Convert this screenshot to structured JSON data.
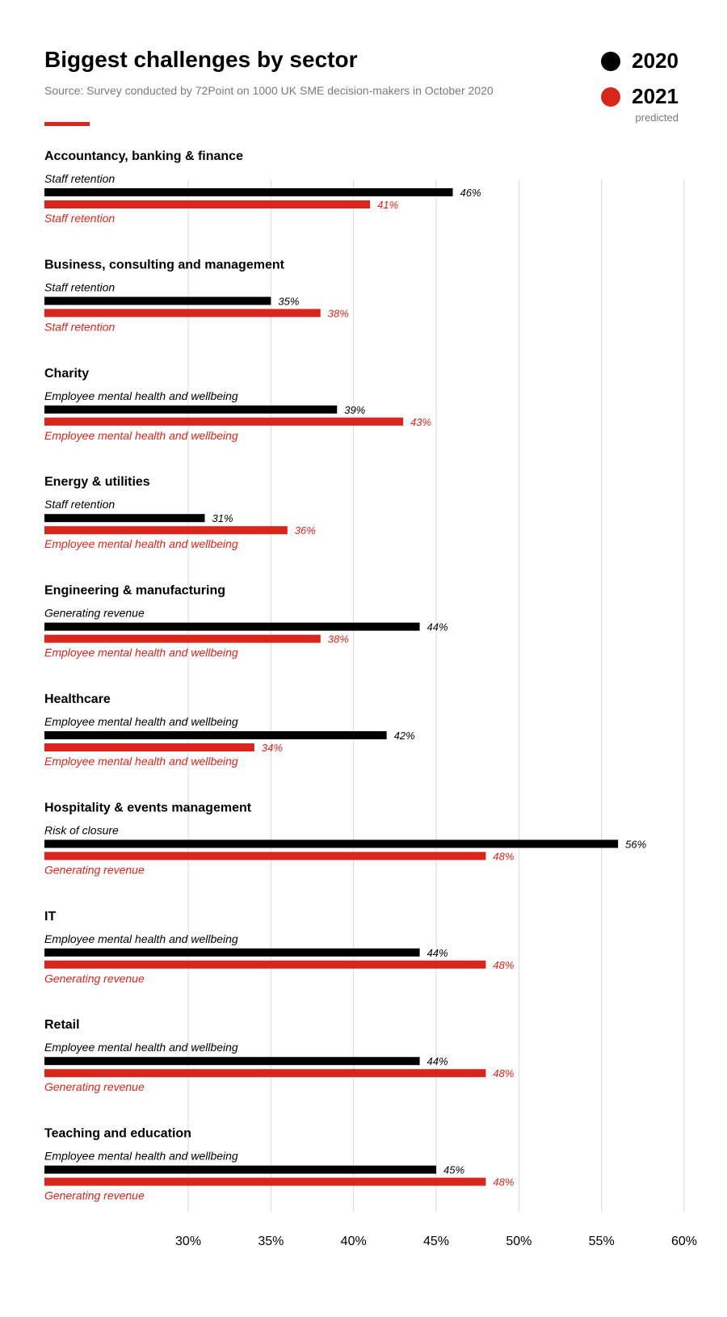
{
  "title": "Biggest challenges by sector",
  "subtitle": "Source: Survey conducted by 72Point on 1000 UK SME decision-makers in October 2020",
  "colors": {
    "series_2020": "#000000",
    "series_2021": "#d9261c",
    "grid": "#d9d9d9",
    "subtitle": "#7a7a7a"
  },
  "legend": [
    {
      "label": "2020",
      "color": "#000000",
      "note": ""
    },
    {
      "label": "2021",
      "color": "#d9261c",
      "note": "predicted"
    }
  ],
  "chart_data": {
    "type": "bar",
    "orientation": "horizontal",
    "title": "Biggest challenges by sector",
    "xlabel": "",
    "ylabel": "",
    "xlim": [
      21.3,
      60
    ],
    "x_ticks": [
      30,
      35,
      40,
      45,
      50,
      55,
      60
    ],
    "x_tick_labels": [
      "30%",
      "35%",
      "40%",
      "45%",
      "50%",
      "55%",
      "60%"
    ],
    "grid": true,
    "legend_position": "top-right",
    "series_names": [
      "2020",
      "2021"
    ],
    "categories": [
      {
        "sector": "Accountancy, banking & finance",
        "label_2020": "Staff retention",
        "value_2020": 46,
        "label_2021": "Staff retention",
        "value_2021": 41
      },
      {
        "sector": "Business, consulting and management",
        "label_2020": "Staff retention",
        "value_2020": 35,
        "label_2021": "Staff retention",
        "value_2021": 38
      },
      {
        "sector": "Charity",
        "label_2020": "Employee mental health and wellbeing",
        "value_2020": 39,
        "label_2021": "Employee mental health and wellbeing",
        "value_2021": 43
      },
      {
        "sector": "Energy & utilities",
        "label_2020": "Staff retention",
        "value_2020": 31,
        "label_2021": "Employee mental health and wellbeing",
        "value_2021": 36
      },
      {
        "sector": "Engineering & manufacturing",
        "label_2020": "Generating revenue",
        "value_2020": 44,
        "label_2021": "Employee mental health and wellbeing",
        "value_2021": 38
      },
      {
        "sector": "Healthcare",
        "label_2020": "Employee mental health and wellbeing",
        "value_2020": 42,
        "label_2021": "Employee mental health and wellbeing",
        "value_2021": 34
      },
      {
        "sector": "Hospitality & events management",
        "label_2020": "Risk of closure",
        "value_2020": 56,
        "label_2021": "Generating revenue",
        "value_2021": 48
      },
      {
        "sector": "IT",
        "label_2020": "Employee mental health and wellbeing",
        "value_2020": 44,
        "label_2021": "Generating revenue",
        "value_2021": 48
      },
      {
        "sector": "Retail",
        "label_2020": "Employee mental health and wellbeing",
        "value_2020": 44,
        "label_2021": "Generating revenue",
        "value_2021": 48
      },
      {
        "sector": "Teaching and education",
        "label_2020": "Employee mental health and wellbeing",
        "value_2020": 45,
        "label_2021": "Generating revenue",
        "value_2021": 48
      }
    ],
    "value_labels_2020": [
      "46%",
      "35%",
      "39%",
      "31%",
      "44%",
      "42%",
      "56%",
      "44%",
      "44%",
      "45%"
    ],
    "value_labels_2021": [
      "41%",
      "38%",
      "43%",
      "36%",
      "38%",
      "34%",
      "48%",
      "48%",
      "48%",
      "48%"
    ]
  }
}
